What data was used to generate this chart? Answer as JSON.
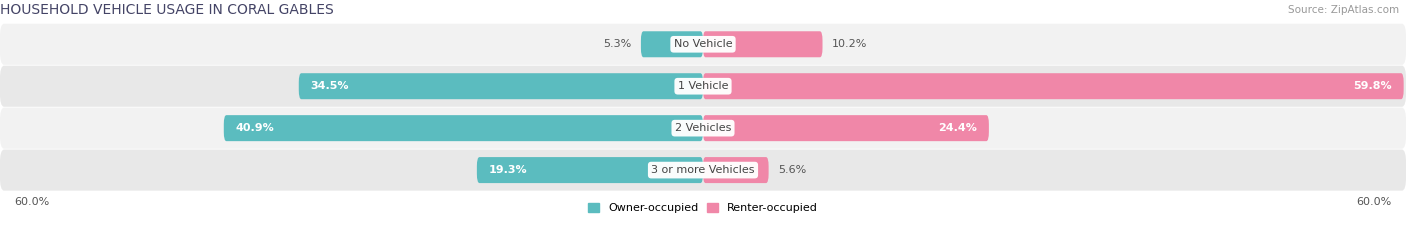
{
  "title": "HOUSEHOLD VEHICLE USAGE IN CORAL GABLES",
  "source": "Source: ZipAtlas.com",
  "categories": [
    "No Vehicle",
    "1 Vehicle",
    "2 Vehicles",
    "3 or more Vehicles"
  ],
  "owner_values": [
    5.3,
    34.5,
    40.9,
    19.3
  ],
  "renter_values": [
    10.2,
    59.8,
    24.4,
    5.6
  ],
  "owner_color": "#5bbcbf",
  "renter_color": "#f087a8",
  "row_bg_light": "#f2f2f2",
  "row_bg_dark": "#e8e8e8",
  "xlim": 60.0,
  "legend_owner": "Owner-occupied",
  "legend_renter": "Renter-occupied",
  "title_fontsize": 10,
  "source_fontsize": 7.5,
  "label_fontsize": 8,
  "category_fontsize": 8,
  "axis_label_fontsize": 8,
  "bar_height": 0.62
}
